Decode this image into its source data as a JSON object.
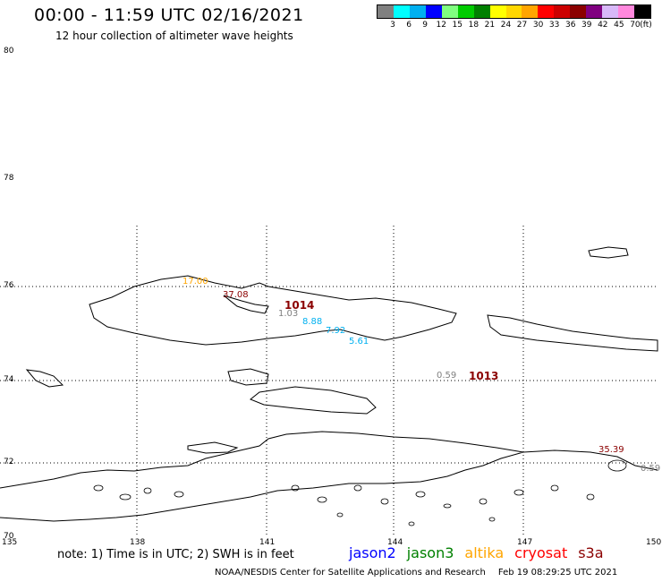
{
  "header": {
    "title": "00:00 - 11:59 UTC 02/16/2021",
    "subtitle": "12 hour collection of altimeter wave heights"
  },
  "legend": {
    "unit": "(ft)",
    "colors": [
      "#808080",
      "#00ffff",
      "#00b0f0",
      "#0000ff",
      "#80ff80",
      "#00cc00",
      "#008000",
      "#ffff00",
      "#ffd700",
      "#ffa500",
      "#ff0000",
      "#cc0000",
      "#8b0000",
      "#800080",
      "#d8b8f8",
      "#ff88dd",
      "#000000"
    ],
    "ticks": [
      "3",
      "6",
      "9",
      "12",
      "15",
      "18",
      "21",
      "24",
      "27",
      "30",
      "33",
      "36",
      "39",
      "42",
      "45",
      "70"
    ]
  },
  "axes": {
    "lat_labels": [
      "80",
      "78",
      "76",
      "74",
      "72",
      "70"
    ],
    "lon_labels": [
      "135",
      "138",
      "141",
      "144",
      "147",
      "150"
    ]
  },
  "observations": [
    {
      "text": "17.00",
      "color": "#ffa500"
    },
    {
      "text": "37.08",
      "color": "#8b0000"
    },
    {
      "text": "1.03",
      "color": "#808080"
    },
    {
      "text": "8.88",
      "color": "#00b0f0"
    },
    {
      "text": "7.92",
      "color": "#00b0f0"
    },
    {
      "text": "5.61",
      "color": "#00b0f0"
    },
    {
      "text": "0.59",
      "color": "#808080"
    },
    {
      "text": "35.39",
      "color": "#8b0000"
    },
    {
      "text": "0.59",
      "color": "#808080"
    }
  ],
  "pressure_labels": [
    "1014",
    "1013"
  ],
  "footer": {
    "note": "note: 1) Time is in UTC; 2) SWH is in feet",
    "satellites": [
      {
        "name": "jason2",
        "color": "#0000ff"
      },
      {
        "name": "jason3",
        "color": "#008000"
      },
      {
        "name": "altika",
        "color": "#ffa500"
      },
      {
        "name": "cryosat",
        "color": "#ff0000"
      },
      {
        "name": "s3a",
        "color": "#8b0000"
      }
    ],
    "credit_org": "NOAA/NESDIS Center for Satellite Applications and Research",
    "credit_time": "Feb 19 08:29:25 UTC 2021"
  }
}
